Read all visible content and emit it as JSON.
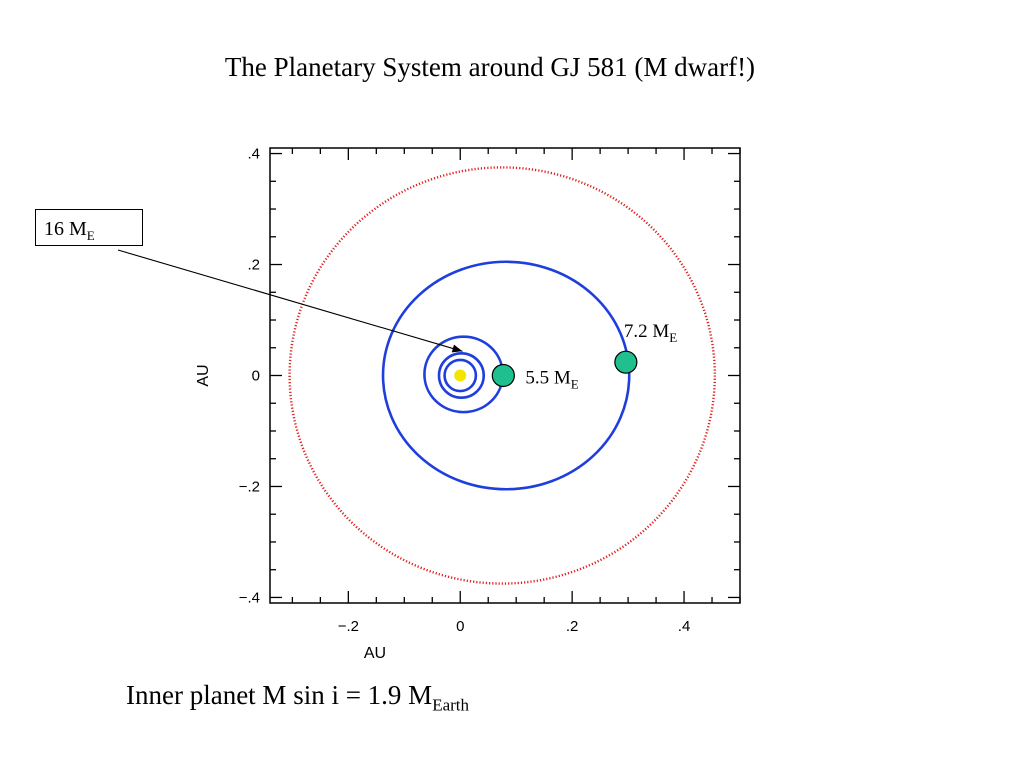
{
  "slide": {
    "title": "The Planetary System around GJ 581 (M dwarf!)",
    "footer": {
      "text": "Inner planet M sin i = 1.9 M",
      "sub": "Earth"
    },
    "callout": {
      "text": "16 M",
      "sub": "E"
    }
  },
  "colors": {
    "star": "#f2e600",
    "planet_fill": "#1fbf8f",
    "inner_orbits": "#1f3fdd",
    "outer_orbit": "#e21d1d",
    "arrow": "#000000"
  },
  "chart_data": {
    "type": "scatter",
    "title": "",
    "xlabel": "AU",
    "ylabel": "AU",
    "xlim": [
      -0.34,
      0.5
    ],
    "ylim": [
      -0.41,
      0.41
    ],
    "x_ticks": [
      {
        "value": -0.2,
        "label": "−.2"
      },
      {
        "value": 0,
        "label": "0"
      },
      {
        "value": 0.2,
        "label": ".2"
      },
      {
        "value": 0.4,
        "label": ".4"
      }
    ],
    "y_ticks": [
      {
        "value": 0.4,
        "label": ".4"
      },
      {
        "value": 0.2,
        "label": ".2"
      },
      {
        "value": 0,
        "label": "0"
      },
      {
        "value": -0.2,
        "label": "−.2"
      },
      {
        "value": -0.4,
        "label": "−.4"
      }
    ],
    "star": {
      "x": 0,
      "y": 0
    },
    "orbits": [
      {
        "cx": 0.0,
        "cy": 0.0,
        "rx": 0.028,
        "ry": 0.028,
        "style": "solid",
        "color": "#1f3fdd"
      },
      {
        "cx": 0.002,
        "cy": 0.0,
        "rx": 0.04,
        "ry": 0.04,
        "style": "solid",
        "color": "#1f3fdd"
      },
      {
        "cx": 0.006,
        "cy": 0.002,
        "rx": 0.07,
        "ry": 0.068,
        "style": "solid",
        "color": "#1f3fdd"
      },
      {
        "cx": 0.082,
        "cy": 0.0,
        "rx": 0.22,
        "ry": 0.205,
        "style": "solid",
        "color": "#1f3fdd"
      },
      {
        "cx": 0.075,
        "cy": 0.0,
        "rx": 0.38,
        "ry": 0.375,
        "style": "dotted",
        "color": "#e21d1d"
      }
    ],
    "planets": [
      {
        "x": 0.077,
        "y": 0.0,
        "label": "5.5 M",
        "label_sub": "E"
      },
      {
        "x": 0.296,
        "y": 0.024,
        "label": "7.2 M",
        "label_sub": "E"
      }
    ],
    "arrow_target": {
      "x": 0.004,
      "y": 0.04
    }
  }
}
